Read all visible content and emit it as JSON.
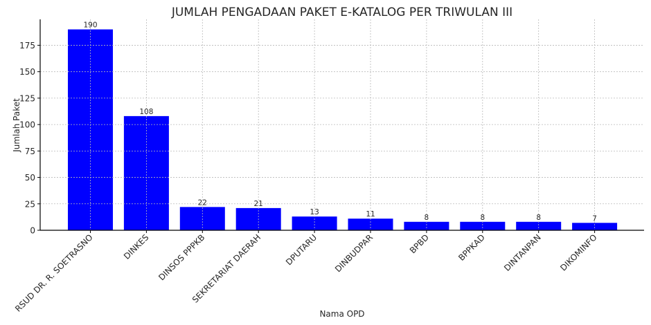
{
  "chart_data": {
    "type": "bar",
    "title": "JUMLAH PENGADAAN PAKET E-KATALOG PER TRIWULAN III",
    "xlabel": "Nama OPD",
    "ylabel": "Jumlah Paket",
    "categories": [
      "RSUD DR. R. SOETRASNO",
      "DINKES",
      "DINSOS PPPKB",
      "SEKRETARIAT DAERAH",
      "DPUTARU",
      "DINBUDPAR",
      "BPBD",
      "BPPKAD",
      "DINTANPAN",
      "DIKOMINFO"
    ],
    "values": [
      190,
      108,
      22,
      21,
      13,
      11,
      8,
      8,
      8,
      7
    ],
    "ylim": [
      0,
      199.5
    ],
    "yticks": [
      0,
      25,
      50,
      75,
      100,
      125,
      150,
      175
    ],
    "grid": true,
    "bar_color": "#0000ff",
    "data_labels": true
  }
}
